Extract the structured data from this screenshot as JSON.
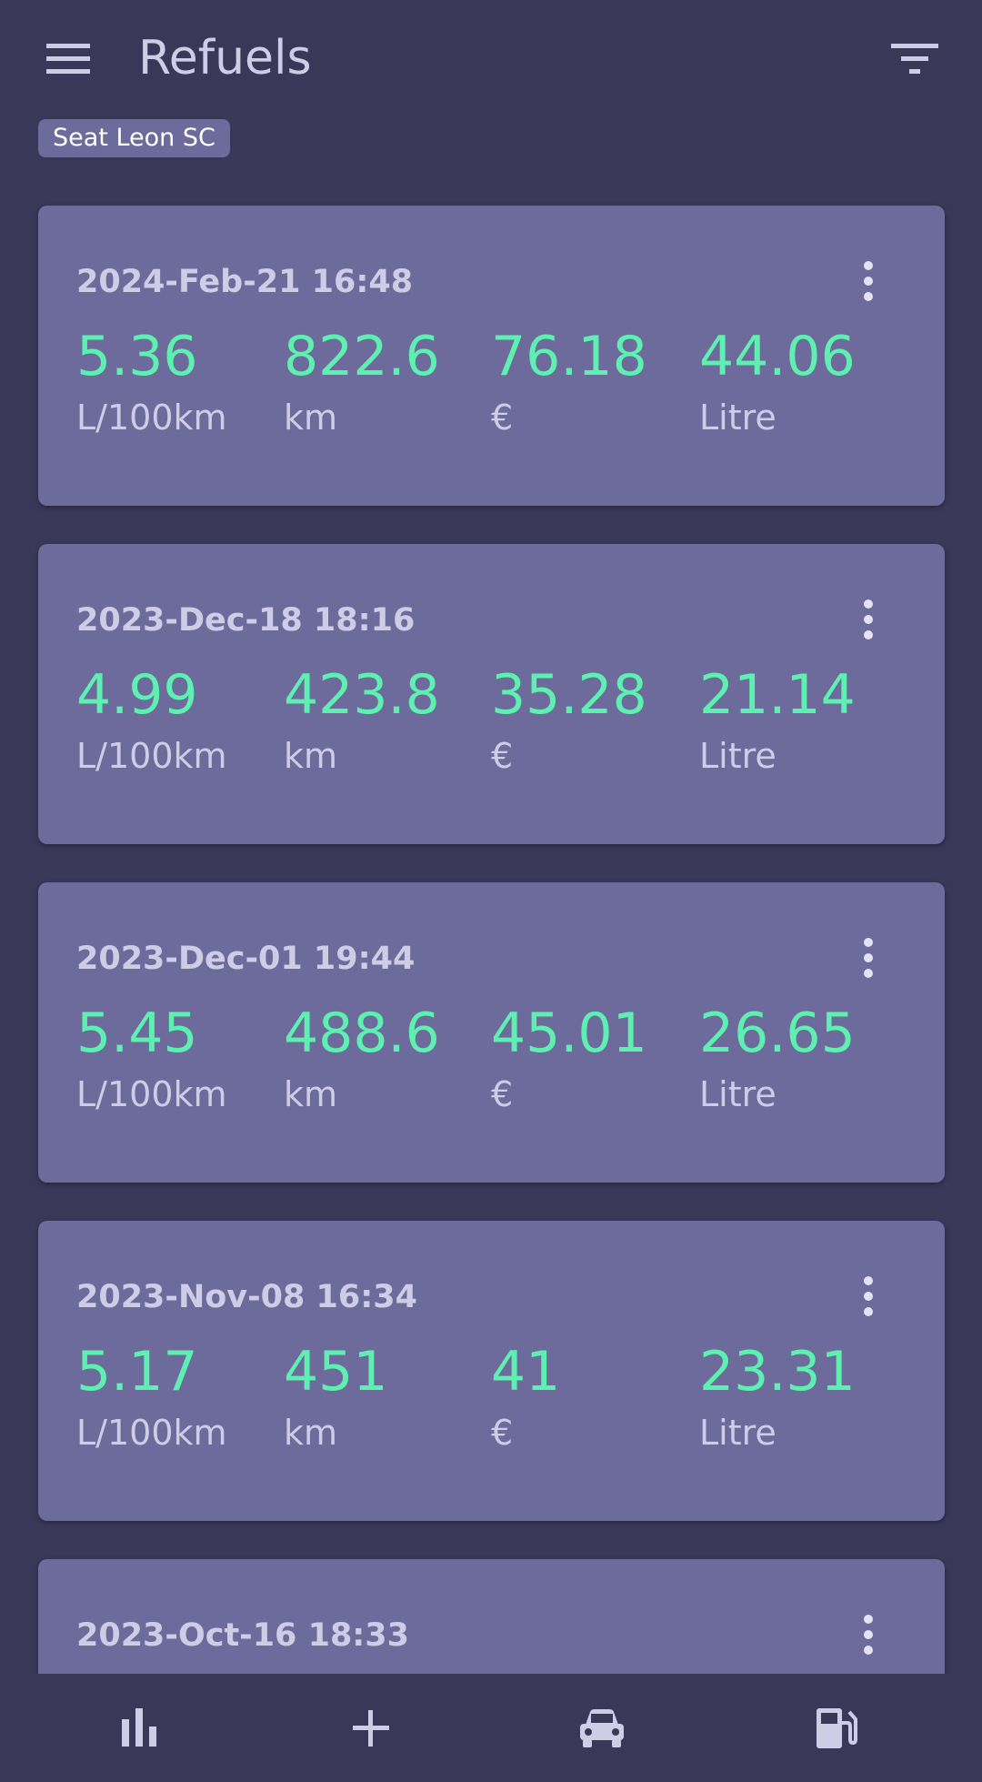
{
  "header": {
    "title": "Refuels",
    "menu_icon": "hamburger-menu-icon",
    "filter_icon": "filter-list-icon"
  },
  "filter_chip": {
    "label": "Seat Leon SC"
  },
  "colors": {
    "background": "#3a3859",
    "card": "#6d6b9c",
    "value_accent": "#5ef0b0",
    "text_muted": "#cfcde6"
  },
  "refuels": [
    {
      "date": "2024-Feb-21 16:48",
      "consumption": "5.36",
      "consumption_unit": "L/100km",
      "distance": "822.6",
      "distance_unit": "km",
      "cost": "76.18",
      "cost_unit": "€",
      "volume": "44.06",
      "volume_unit": "Litre"
    },
    {
      "date": "2023-Dec-18 18:16",
      "consumption": "4.99",
      "consumption_unit": "L/100km",
      "distance": "423.8",
      "distance_unit": "km",
      "cost": "35.28",
      "cost_unit": "€",
      "volume": "21.14",
      "volume_unit": "Litre"
    },
    {
      "date": "2023-Dec-01 19:44",
      "consumption": "5.45",
      "consumption_unit": "L/100km",
      "distance": "488.6",
      "distance_unit": "km",
      "cost": "45.01",
      "cost_unit": "€",
      "volume": "26.65",
      "volume_unit": "Litre"
    },
    {
      "date": "2023-Nov-08 16:34",
      "consumption": "5.17",
      "consumption_unit": "L/100km",
      "distance": "451",
      "distance_unit": "km",
      "cost": "41",
      "cost_unit": "€",
      "volume": "23.31",
      "volume_unit": "Litre"
    },
    {
      "date": "2023-Oct-16 18:33"
    }
  ],
  "bottom_nav": [
    {
      "icon": "bar-chart-icon"
    },
    {
      "icon": "add-icon"
    },
    {
      "icon": "car-icon"
    },
    {
      "icon": "fuel-pump-icon"
    }
  ]
}
